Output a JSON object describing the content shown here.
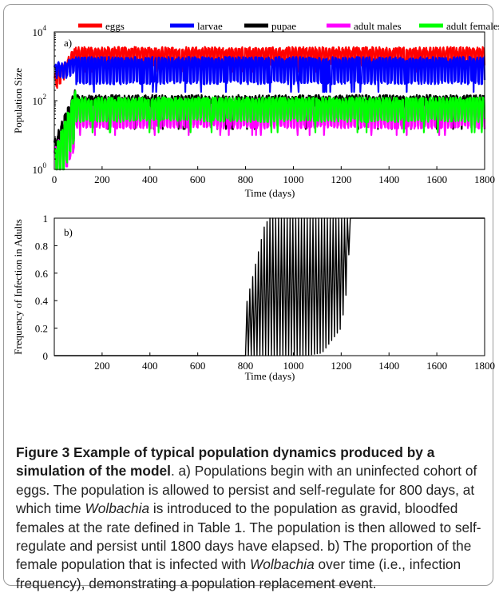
{
  "chart_data": [
    {
      "type": "line",
      "panel": "a)",
      "xlabel": "Time (days)",
      "ylabel": "Population Size",
      "y_scale": "log",
      "xlim": [
        0,
        1800
      ],
      "ylim": [
        1,
        10000
      ],
      "x_ticks": [
        0,
        200,
        400,
        600,
        800,
        1000,
        1200,
        1400,
        1600,
        1800
      ],
      "y_ticks": [
        {
          "value": 1,
          "base": "10",
          "exp": "0"
        },
        {
          "value": 100,
          "base": "10",
          "exp": "2"
        },
        {
          "value": 10000,
          "base": "10",
          "exp": "4"
        }
      ],
      "legend_position": "top",
      "series": [
        {
          "name": "eggs",
          "color": "#ff0000",
          "start": 300,
          "level": 2000,
          "lo": 1200,
          "hi": 3500,
          "dip": 700
        },
        {
          "name": "larvae",
          "color": "#0000ff",
          "start": 700,
          "level": 900,
          "lo": 350,
          "hi": 1800,
          "dip": 180
        },
        {
          "name": "pupae",
          "color": "#000000",
          "start": 2,
          "level": 70,
          "lo": 35,
          "hi": 140,
          "dip": 15
        },
        {
          "name": "adult males",
          "color": "#ff00ff",
          "start": 1,
          "level": 35,
          "lo": 18,
          "hi": 75,
          "dip": 10
        },
        {
          "name": "adult females",
          "color": "#00ff00",
          "start": 1,
          "level": 60,
          "lo": 28,
          "hi": 120,
          "dip": 12
        }
      ]
    },
    {
      "type": "line",
      "panel": "b)",
      "xlabel": "Time (days)",
      "ylabel": "Frequency of Infection in Adults",
      "xlim": [
        0,
        1800
      ],
      "ylim": [
        0,
        1
      ],
      "x_ticks": [
        200,
        400,
        600,
        800,
        1000,
        1200,
        1400,
        1600,
        1800
      ],
      "y_ticks": [
        0,
        0.2,
        0.4,
        0.6,
        0.8,
        1
      ],
      "series": [
        {
          "name": "",
          "color": "#000000",
          "start_day": 800,
          "period_days": 12,
          "fixation_day": 1240,
          "envelope_max": [
            [
              800,
              0.35
            ],
            [
              840,
              0.65
            ],
            [
              880,
              0.95
            ],
            [
              900,
              1
            ],
            [
              1240,
              1
            ],
            [
              1800,
              1
            ]
          ],
          "envelope_min": [
            [
              800,
              0
            ],
            [
              1050,
              0
            ],
            [
              1120,
              0.02
            ],
            [
              1200,
              0.2
            ],
            [
              1225,
              0.5
            ],
            [
              1240,
              1
            ],
            [
              1800,
              1
            ]
          ]
        }
      ]
    }
  ],
  "caption": {
    "label": "Figure 3 Example of typical population dynamics produced by a simulation of the model",
    "text_1": ". a) Populations begin with an uninfected cohort of eggs. The population is allowed to persist and self-regulate for 800 days, at which time ",
    "italic_1": "Wolbachia",
    "text_2": " is introduced to the population as gravid, bloodfed females at the rate defined in Table 1. The population is then allowed to self-regulate and persist until 1800 days have elapsed. b) The proportion of the female population that is infected with ",
    "italic_2": "Wolbachia",
    "text_3": " over time (i.e., infection frequency), demonstrating a population replacement event."
  }
}
